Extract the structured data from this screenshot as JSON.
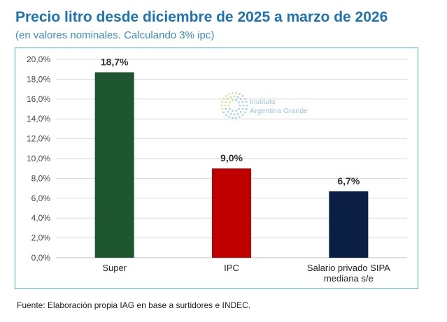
{
  "header": {
    "title": "Precio litro desde diciembre de 2025 a marzo de 2026",
    "subtitle": "(en valores nominales. Calculando 3% ipc)"
  },
  "watermark": {
    "line1": "Instituto",
    "line2": "Argentina Grande"
  },
  "footer": {
    "source": "Fuente: Elaboración propia IAG en base a surtidores e INDEC."
  },
  "chart_data": {
    "type": "bar",
    "title": "Precio litro desde diciembre de 2025 a marzo de 2026",
    "subtitle": "(en valores nominales. Calculando 3% ipc)",
    "xlabel": "",
    "ylabel": "",
    "ylim": [
      0,
      20
    ],
    "ytick_step": 2,
    "ytick_labels": [
      "0,0%",
      "2,0%",
      "4,0%",
      "6,0%",
      "8,0%",
      "10,0%",
      "12,0%",
      "14,0%",
      "16,0%",
      "18,0%",
      "20,0%"
    ],
    "grid": true,
    "categories": [
      [
        "Super"
      ],
      [
        "IPC"
      ],
      [
        "Salario privado SIPA",
        "mediana s/e"
      ]
    ],
    "values": [
      18.7,
      9.0,
      6.7
    ],
    "value_labels": [
      "18,7%",
      "9,0%",
      "6,7%"
    ],
    "colors": [
      "#1e5631",
      "#c00000",
      "#0b1f45"
    ]
  }
}
